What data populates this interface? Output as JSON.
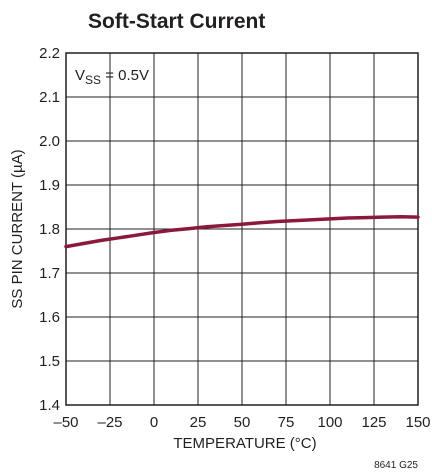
{
  "chart_data": {
    "type": "line",
    "title": "Soft-Start Current",
    "xlabel": "TEMPERATURE (°C)",
    "ylabel": "SS PIN CURRENT (µA)",
    "xlim": [
      -50,
      150
    ],
    "ylim": [
      1.4,
      2.2
    ],
    "x_ticks": [
      "–50",
      "–25",
      "0",
      "25",
      "50",
      "75",
      "100",
      "125",
      "150"
    ],
    "x_tick_values": [
      -50,
      -25,
      0,
      25,
      50,
      75,
      100,
      125,
      150
    ],
    "y_ticks": [
      "1.4",
      "1.5",
      "1.6",
      "1.7",
      "1.8",
      "1.9",
      "2.0",
      "2.1",
      "2.2"
    ],
    "y_tick_values": [
      1.4,
      1.5,
      1.6,
      1.7,
      1.8,
      1.9,
      2.0,
      2.1,
      2.2
    ],
    "grid": true,
    "annotation": {
      "main": "V",
      "sub": "SS",
      "rest": " = 0.5V"
    },
    "figure_code": "8641 G25",
    "line_color": "#8b1a3a",
    "series": [
      {
        "x": [
          -50,
          -40,
          -30,
          -20,
          -10,
          0,
          10,
          20,
          30,
          40,
          50,
          60,
          70,
          80,
          90,
          100,
          110,
          120,
          130,
          140,
          150
        ],
        "y": [
          1.76,
          1.767,
          1.774,
          1.78,
          1.786,
          1.792,
          1.797,
          1.801,
          1.805,
          1.808,
          1.811,
          1.814,
          1.817,
          1.819,
          1.821,
          1.823,
          1.825,
          1.826,
          1.827,
          1.828,
          1.827
        ]
      }
    ]
  }
}
